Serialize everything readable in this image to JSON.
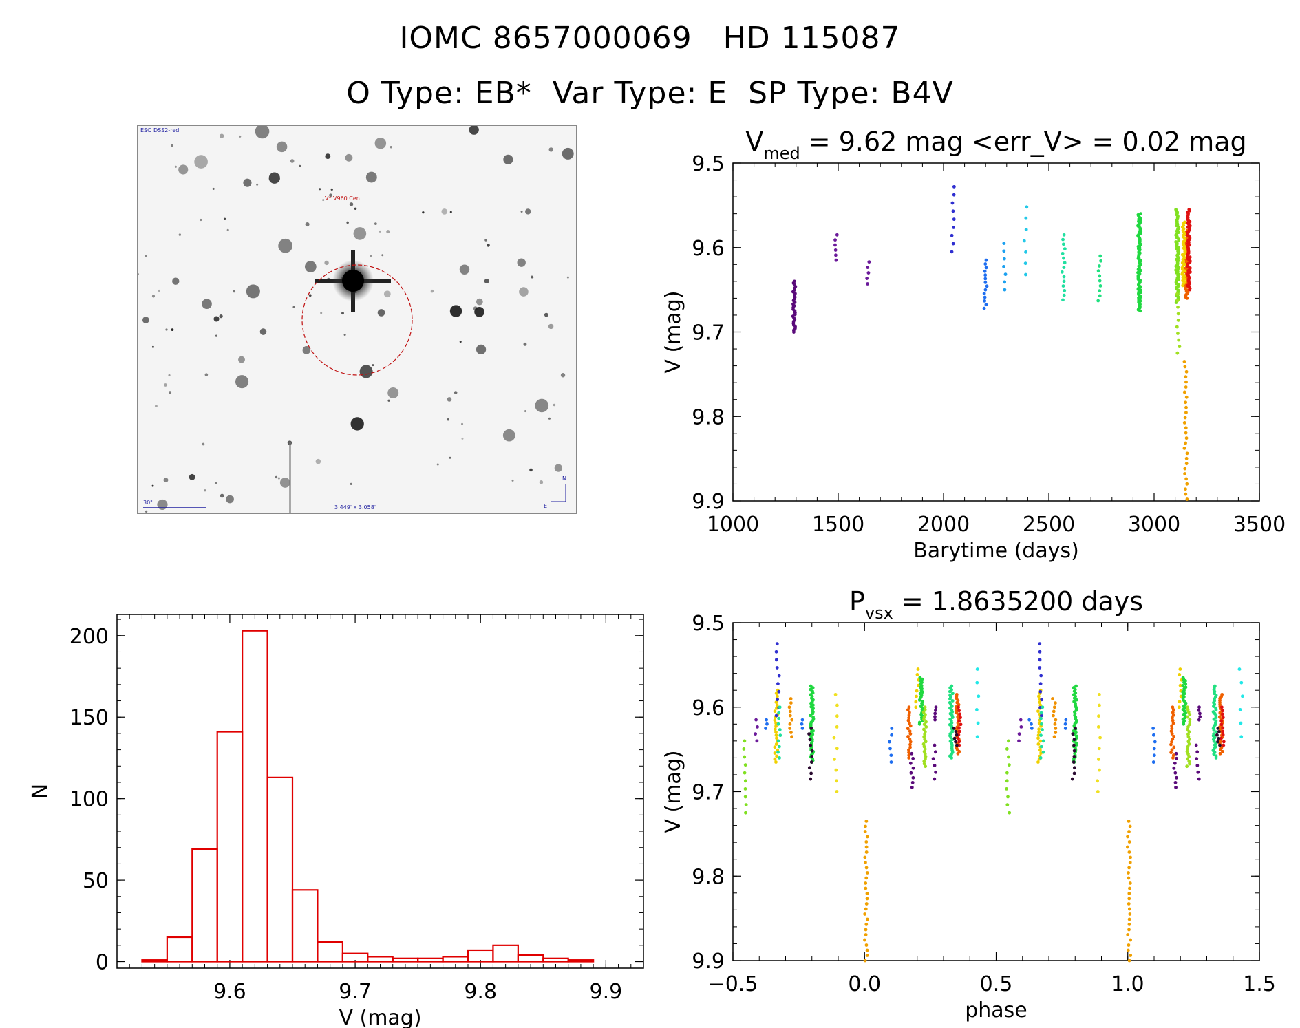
{
  "header": {
    "title_line1": "IOMC 8657000069   HD 115087",
    "title_line2": "O Type: EB*  Var Type: E  SP Type: B4V"
  },
  "thumbnail": {
    "corner_label": "ESO DSS2-red",
    "target_label": "V* V960 Cen",
    "scale_label": "30\"",
    "fov_label": "3.449' x 3.058'",
    "north_label": "N",
    "east_label": "E"
  },
  "chart_data": [
    {
      "id": "lightcurve",
      "type": "scatter",
      "title_main": "V",
      "title_sub": "med",
      "title_rest": " = 9.62 mag <err_V> = 0.02 mag",
      "xlabel": "Barytime (days)",
      "ylabel": "V (mag)",
      "xlim": [
        1000,
        3500
      ],
      "ylim": [
        9.9,
        9.5
      ],
      "xticks": [
        1000,
        1500,
        2000,
        2500,
        3000,
        3500
      ],
      "yticks": [
        9.5,
        9.6,
        9.7,
        9.8,
        9.9
      ],
      "groups": [
        {
          "x": 1290,
          "ymin": 9.64,
          "ymax": 9.7,
          "n": 30,
          "color": "#5a0a7a"
        },
        {
          "x": 1490,
          "ymin": 9.585,
          "ymax": 9.615,
          "n": 6,
          "color": "#6b1a9a"
        },
        {
          "x": 1640,
          "ymin": 9.617,
          "ymax": 9.643,
          "n": 5,
          "color": "#6b1a9a"
        },
        {
          "x": 2045,
          "ymin": 9.528,
          "ymax": 9.605,
          "n": 9,
          "color": "#2f2fd0"
        },
        {
          "x": 2200,
          "ymin": 9.615,
          "ymax": 9.672,
          "n": 14,
          "color": "#1e6ef0"
        },
        {
          "x": 2290,
          "ymin": 9.595,
          "ymax": 9.65,
          "n": 7,
          "color": "#1ba0f0"
        },
        {
          "x": 2390,
          "ymin": 9.552,
          "ymax": 9.632,
          "n": 7,
          "color": "#22c8e8"
        },
        {
          "x": 2570,
          "ymin": 9.585,
          "ymax": 9.662,
          "n": 15,
          "color": "#20e0a0"
        },
        {
          "x": 2740,
          "ymin": 9.61,
          "ymax": 9.663,
          "n": 10,
          "color": "#20e080"
        },
        {
          "x": 2930,
          "ymin": 9.56,
          "ymax": 9.675,
          "n": 90,
          "color": "#20d840"
        },
        {
          "x": 3110,
          "ymin": 9.555,
          "ymax": 9.665,
          "n": 70,
          "color": "#80e020"
        },
        {
          "x": 3115,
          "ymin": 9.655,
          "ymax": 9.725,
          "n": 10,
          "color": "#a0e020"
        },
        {
          "x": 3150,
          "ymin": 9.735,
          "ymax": 9.898,
          "n": 28,
          "color": "#f0a000"
        },
        {
          "x": 3155,
          "ymin": 9.58,
          "ymax": 9.66,
          "n": 60,
          "color": "#f06000"
        },
        {
          "x": 3165,
          "ymin": 9.555,
          "ymax": 9.65,
          "n": 60,
          "color": "#e01010"
        },
        {
          "x": 3140,
          "ymin": 9.57,
          "ymax": 9.645,
          "n": 40,
          "color": "#f0d000"
        }
      ]
    },
    {
      "id": "histogram",
      "type": "bar",
      "xlabel": "V (mag)",
      "ylabel": "N",
      "xlim": [
        9.51,
        9.93
      ],
      "ylim": [
        -4,
        213
      ],
      "xticks": [
        9.6,
        9.7,
        9.8,
        9.9
      ],
      "yticks": [
        0,
        50,
        100,
        150,
        200
      ],
      "bin_edges": [
        9.53,
        9.55,
        9.57,
        9.59,
        9.61,
        9.63,
        9.65,
        9.67,
        9.69,
        9.71,
        9.73,
        9.75,
        9.77,
        9.79,
        9.81,
        9.83,
        9.85,
        9.87,
        9.89,
        9.91
      ],
      "values": [
        1,
        15,
        69,
        141,
        203,
        113,
        44,
        12,
        5,
        3,
        2,
        2,
        3,
        7,
        10,
        4,
        2,
        1,
        0
      ],
      "color": "#e00000"
    },
    {
      "id": "phased",
      "type": "scatter",
      "title_main": "P",
      "title_sub": "vsx",
      "title_rest": " = 1.8635200 days",
      "xlabel": "phase",
      "ylabel": "V (mag)",
      "xlim": [
        -0.5,
        1.5
      ],
      "ylim": [
        9.9,
        9.5
      ],
      "xticks": [
        -0.5,
        0.0,
        0.5,
        1.0,
        1.5
      ],
      "xtick_labels": [
        "−0.5",
        "0.0",
        "0.5",
        "1.0",
        "1.5"
      ],
      "yticks": [
        9.5,
        9.6,
        9.7,
        9.8,
        9.9
      ],
      "groups": [
        {
          "x": -0.455,
          "ymin": 9.64,
          "ymax": 9.725,
          "n": 10,
          "color": "#80e020"
        },
        {
          "x": -0.41,
          "ymin": 9.615,
          "ymax": 9.64,
          "n": 4,
          "color": "#6b1a9a"
        },
        {
          "x": -0.37,
          "ymin": 9.615,
          "ymax": 9.625,
          "n": 3,
          "color": "#1e6ef0"
        },
        {
          "x": -0.335,
          "ymin": 9.58,
          "ymax": 9.665,
          "n": 25,
          "color": "#f0d000"
        },
        {
          "x": -0.33,
          "ymin": 9.525,
          "ymax": 9.61,
          "n": 10,
          "color": "#2f2fd0"
        },
        {
          "x": -0.325,
          "ymin": 9.6,
          "ymax": 9.66,
          "n": 10,
          "color": "#20e0a0"
        },
        {
          "x": -0.28,
          "ymin": 9.59,
          "ymax": 9.635,
          "n": 10,
          "color": "#f09000"
        },
        {
          "x": -0.24,
          "ymin": 9.615,
          "ymax": 9.625,
          "n": 3,
          "color": "#1e6ef0"
        },
        {
          "x": -0.2,
          "ymin": 9.575,
          "ymax": 9.665,
          "n": 45,
          "color": "#20d840"
        },
        {
          "x": -0.205,
          "ymin": 9.625,
          "ymax": 9.685,
          "n": 10,
          "color": "#2a0a30"
        },
        {
          "x": -0.11,
          "ymin": 9.585,
          "ymax": 9.7,
          "n": 10,
          "color": "#f0e020"
        },
        {
          "x": 0.005,
          "ymin": 9.735,
          "ymax": 9.9,
          "n": 28,
          "color": "#f0a000"
        },
        {
          "x": 0.1,
          "ymin": 9.625,
          "ymax": 9.665,
          "n": 6,
          "color": "#1e6ef0"
        },
        {
          "x": 0.17,
          "ymin": 9.6,
          "ymax": 9.66,
          "n": 20,
          "color": "#f06000"
        },
        {
          "x": 0.18,
          "ymin": 9.655,
          "ymax": 9.695,
          "n": 8,
          "color": "#5a0a7a"
        },
        {
          "x": 0.2,
          "ymin": 9.555,
          "ymax": 9.6,
          "n": 8,
          "color": "#f0d000"
        },
        {
          "x": 0.215,
          "ymin": 9.565,
          "ymax": 9.62,
          "n": 30,
          "color": "#20d840"
        },
        {
          "x": 0.23,
          "ymin": 9.6,
          "ymax": 9.67,
          "n": 25,
          "color": "#a0e020"
        },
        {
          "x": 0.27,
          "ymin": 9.6,
          "ymax": 9.615,
          "n": 5,
          "color": "#5a0a7a"
        },
        {
          "x": 0.265,
          "ymin": 9.645,
          "ymax": 9.685,
          "n": 6,
          "color": "#5a0a7a"
        },
        {
          "x": 0.33,
          "ymin": 9.575,
          "ymax": 9.66,
          "n": 40,
          "color": "#20e080"
        },
        {
          "x": 0.355,
          "ymin": 9.585,
          "ymax": 9.655,
          "n": 30,
          "color": "#f06000"
        },
        {
          "x": 0.36,
          "ymin": 9.6,
          "ymax": 9.645,
          "n": 12,
          "color": "#e01010"
        },
        {
          "x": 0.345,
          "ymin": 9.625,
          "ymax": 9.645,
          "n": 6,
          "color": "#2a0a30"
        },
        {
          "x": 0.43,
          "ymin": 9.555,
          "ymax": 9.635,
          "n": 6,
          "color": "#22e8e8"
        }
      ]
    }
  ]
}
